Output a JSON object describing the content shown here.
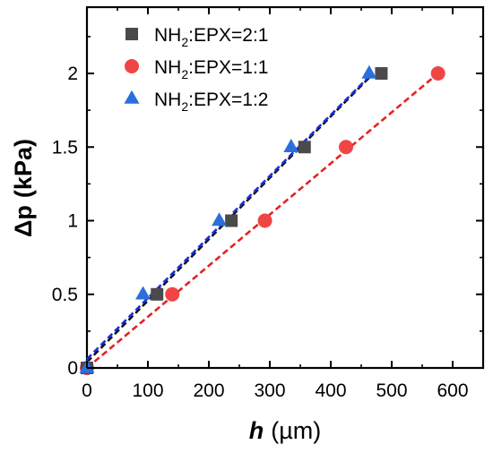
{
  "chart_data": {
    "type": "scatter",
    "title": "",
    "xlabel": {
      "var": "h",
      "unit": "(µm)"
    },
    "ylabel": {
      "var": "Δp",
      "unit": "(kPa)"
    },
    "xlim": [
      0,
      650
    ],
    "ylim": [
      0,
      2.45
    ],
    "x_ticks": [
      0,
      100,
      200,
      300,
      400,
      500,
      600
    ],
    "x_tick_labels": [
      "0",
      "100",
      "200",
      "300",
      "400",
      "500",
      "600"
    ],
    "y_ticks": [
      0,
      0.5,
      1,
      1.5,
      2
    ],
    "y_tick_labels": [
      "0",
      "0.5",
      "1",
      "1.5",
      "2"
    ],
    "grid": false,
    "legend_position": "top-left",
    "series": [
      {
        "name": "NH2:EPX=2:1",
        "legend": {
          "base": "NH",
          "sub": "2",
          "rest": ":EPX=2:1"
        },
        "marker": "square",
        "color": "#4a4a4a",
        "fit_color": "#111111",
        "points": [
          [
            0,
            0
          ],
          [
            115,
            0.5
          ],
          [
            237,
            1.0
          ],
          [
            357,
            1.5
          ],
          [
            483,
            2.0
          ]
        ],
        "fit": [
          [
            0,
            0.04
          ],
          [
            470,
            2.0
          ]
        ]
      },
      {
        "name": "NH2:EPX=1:1",
        "legend": {
          "base": "NH",
          "sub": "2",
          "rest": ":EPX=1:1"
        },
        "marker": "circle",
        "color": "#f04545",
        "fit_color": "#e52222",
        "points": [
          [
            0,
            0
          ],
          [
            140,
            0.5
          ],
          [
            292,
            1.0
          ],
          [
            425,
            1.5
          ],
          [
            576,
            2.0
          ]
        ],
        "fit": [
          [
            0,
            0.0
          ],
          [
            576,
            2.0
          ]
        ]
      },
      {
        "name": "NH2:EPX=1:2",
        "legend": {
          "base": "NH",
          "sub": "2",
          "rest": ":EPX=1:2"
        },
        "marker": "triangle",
        "color": "#2a6fdc",
        "fit_color": "#1a2ed8",
        "points": [
          [
            0,
            0
          ],
          [
            92,
            0.5
          ],
          [
            217,
            1.0
          ],
          [
            335,
            1.5
          ],
          [
            463,
            2.0
          ]
        ],
        "fit": [
          [
            0,
            0.06
          ],
          [
            468,
            2.0
          ]
        ]
      }
    ]
  }
}
